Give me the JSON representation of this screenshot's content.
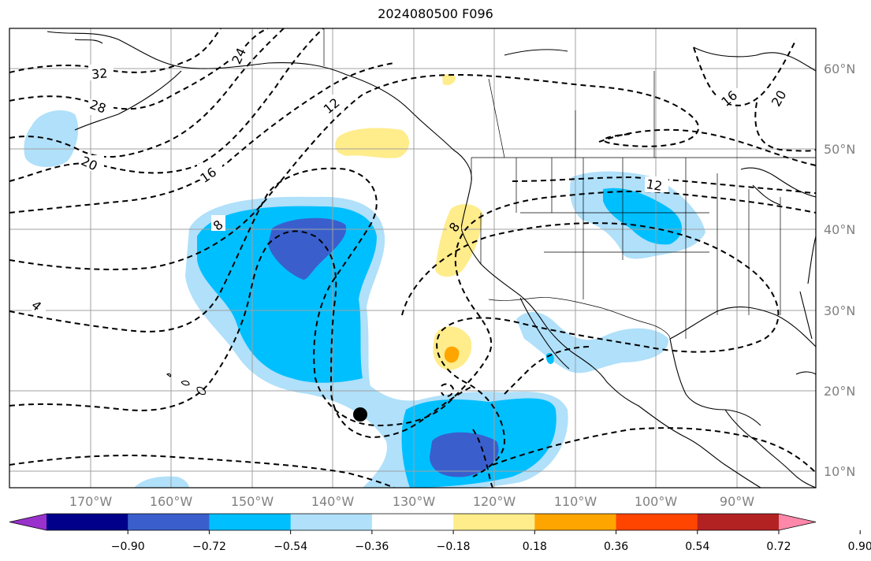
{
  "title": "2024080500 F096",
  "lat_labels": [
    "60°N",
    "50°N",
    "40°N",
    "30°N",
    "20°N",
    "10°N"
  ],
  "lon_labels": [
    "170°W",
    "160°W",
    "150°W",
    "140°W",
    "130°W",
    "120°W",
    "110°W",
    "100°W",
    "90°W"
  ],
  "contour_labels": [
    "32",
    "28",
    "24",
    "20",
    "16",
    "12",
    "8",
    "4",
    "16",
    "20",
    "12",
    "8"
  ],
  "colorbar": {
    "colors": [
      "#9932cc",
      "#00008b",
      "#3a5fcd",
      "#00bfff",
      "#b0e0fa",
      "#ffffff",
      "#ffec8b",
      "#ffa500",
      "#ff4500",
      "#b22222",
      "#ff88aa"
    ],
    "tick_labels": [
      "−0.90",
      "−0.72",
      "−0.54",
      "−0.36",
      "−0.18",
      "0.18",
      "0.36",
      "0.54",
      "0.72",
      "0.90"
    ]
  }
}
